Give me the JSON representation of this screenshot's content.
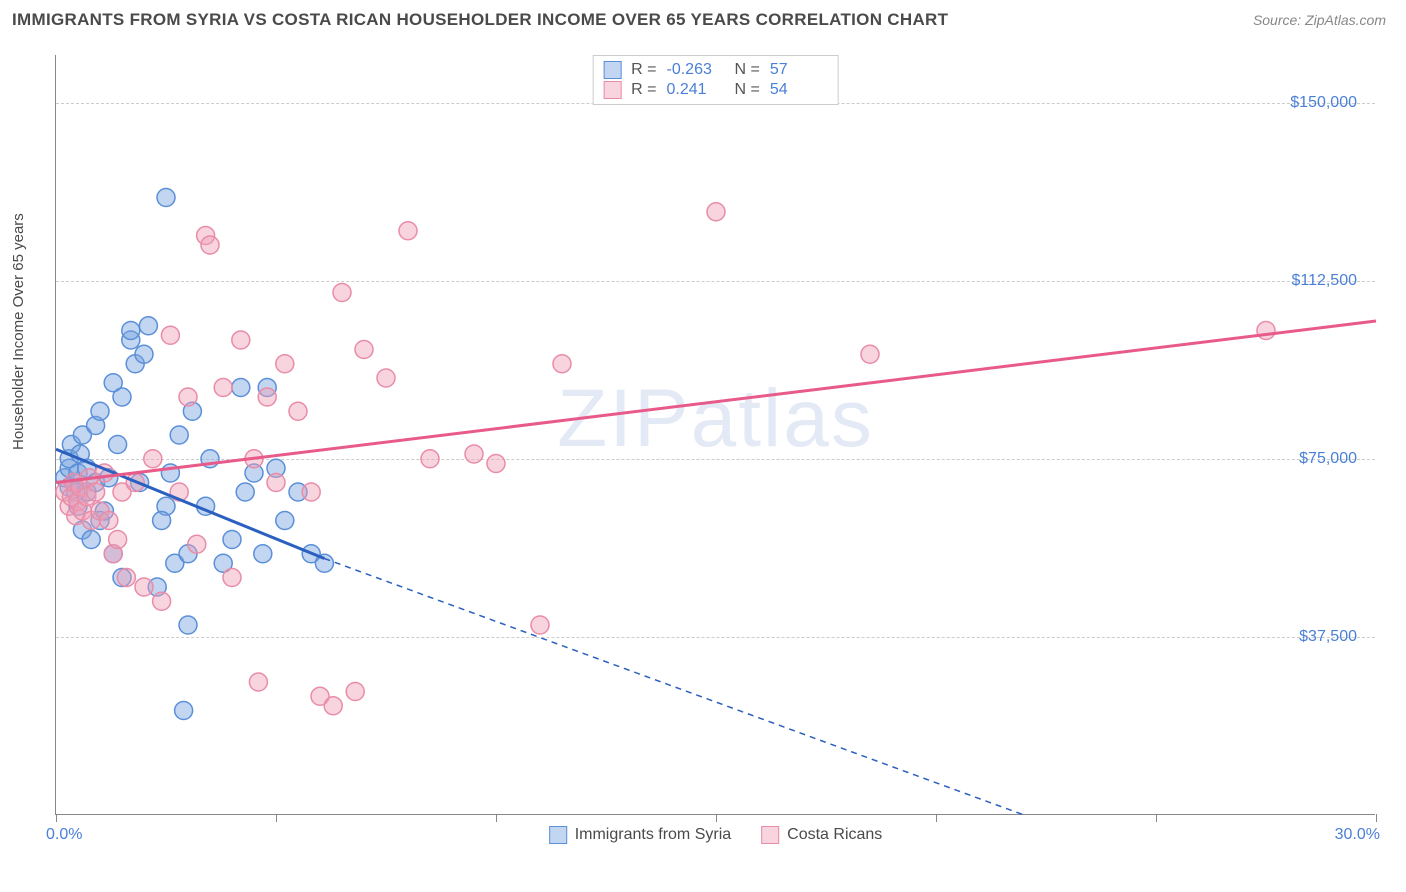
{
  "header": {
    "title": "IMMIGRANTS FROM SYRIA VS COSTA RICAN HOUSEHOLDER INCOME OVER 65 YEARS CORRELATION CHART",
    "source": "Source: ZipAtlas.com"
  },
  "watermark": "ZIPatlas",
  "chart": {
    "type": "scatter-with-regression",
    "ylabel": "Householder Income Over 65 years",
    "x_min": 0.0,
    "x_max": 30.0,
    "y_min": 0,
    "y_max": 160000,
    "x_axis_labels": {
      "start": "0.0%",
      "end": "30.0%"
    },
    "y_ticks": [
      37500,
      75000,
      112500,
      150000
    ],
    "y_tick_labels": [
      "$37,500",
      "$75,000",
      "$112,500",
      "$150,000"
    ],
    "x_tick_positions": [
      0,
      5,
      10,
      15,
      20,
      25,
      30
    ],
    "background_color": "#ffffff",
    "grid_color": "#cccccc",
    "axis_color": "#888888",
    "label_color": "#4a7fd8",
    "marker_radius": 9,
    "marker_opacity": 0.55,
    "line_width": 3,
    "series": [
      {
        "name": "Immigrants from Syria",
        "color_stroke": "#5b8fd8",
        "color_fill": "rgba(120,165,225,0.45)",
        "line_color": "#2b5fc0",
        "R": "-0.263",
        "N": "57",
        "regression": {
          "x1": 0,
          "y1": 77000,
          "x2": 6.1,
          "y2": 54000,
          "extend_x2": 22.0,
          "extend_y2": 0
        },
        "points": [
          [
            0.2,
            71000
          ],
          [
            0.3,
            73000
          ],
          [
            0.3,
            69000
          ],
          [
            0.3,
            75000
          ],
          [
            0.35,
            78000
          ],
          [
            0.4,
            70000
          ],
          [
            0.45,
            68000
          ],
          [
            0.5,
            72000
          ],
          [
            0.5,
            65000
          ],
          [
            0.55,
            76000
          ],
          [
            0.6,
            80000
          ],
          [
            0.6,
            60000
          ],
          [
            0.7,
            68000
          ],
          [
            0.7,
            73000
          ],
          [
            0.8,
            58000
          ],
          [
            0.9,
            70000
          ],
          [
            0.9,
            82000
          ],
          [
            1.0,
            62000
          ],
          [
            1.0,
            85000
          ],
          [
            1.1,
            64000
          ],
          [
            1.2,
            71000
          ],
          [
            1.3,
            91000
          ],
          [
            1.3,
            55000
          ],
          [
            1.4,
            78000
          ],
          [
            1.5,
            50000
          ],
          [
            1.5,
            88000
          ],
          [
            1.7,
            100000
          ],
          [
            1.7,
            102000
          ],
          [
            1.8,
            95000
          ],
          [
            2.0,
            97000
          ],
          [
            2.1,
            103000
          ],
          [
            2.3,
            48000
          ],
          [
            2.5,
            130000
          ],
          [
            2.5,
            65000
          ],
          [
            2.6,
            72000
          ],
          [
            2.7,
            53000
          ],
          [
            2.8,
            80000
          ],
          [
            2.9,
            22000
          ],
          [
            3.0,
            55000
          ],
          [
            3.0,
            40000
          ],
          [
            3.1,
            85000
          ],
          [
            3.4,
            65000
          ],
          [
            3.5,
            75000
          ],
          [
            3.8,
            53000
          ],
          [
            4.0,
            58000
          ],
          [
            4.2,
            90000
          ],
          [
            4.3,
            68000
          ],
          [
            4.5,
            72000
          ],
          [
            4.7,
            55000
          ],
          [
            4.8,
            90000
          ],
          [
            5.0,
            73000
          ],
          [
            5.2,
            62000
          ],
          [
            5.5,
            68000
          ],
          [
            5.8,
            55000
          ],
          [
            6.1,
            53000
          ],
          [
            1.9,
            70000
          ],
          [
            2.4,
            62000
          ]
        ]
      },
      {
        "name": "Costa Ricans",
        "color_stroke": "#e88ca8",
        "color_fill": "rgba(240,160,185,0.45)",
        "line_color": "#e85a8a",
        "R": "0.241",
        "N": "54",
        "regression": {
          "x1": 0,
          "y1": 70000,
          "x2": 30,
          "y2": 104000
        },
        "points": [
          [
            0.2,
            68000
          ],
          [
            0.3,
            65000
          ],
          [
            0.35,
            67000
          ],
          [
            0.4,
            70000
          ],
          [
            0.45,
            63000
          ],
          [
            0.5,
            66000
          ],
          [
            0.55,
            69000
          ],
          [
            0.6,
            64000
          ],
          [
            0.7,
            67000
          ],
          [
            0.75,
            71000
          ],
          [
            0.8,
            62000
          ],
          [
            0.9,
            68000
          ],
          [
            1.0,
            64000
          ],
          [
            1.1,
            72000
          ],
          [
            1.2,
            62000
          ],
          [
            1.3,
            55000
          ],
          [
            1.4,
            58000
          ],
          [
            1.5,
            68000
          ],
          [
            1.6,
            50000
          ],
          [
            1.8,
            70000
          ],
          [
            2.0,
            48000
          ],
          [
            2.2,
            75000
          ],
          [
            2.4,
            45000
          ],
          [
            2.6,
            101000
          ],
          [
            2.8,
            68000
          ],
          [
            3.0,
            88000
          ],
          [
            3.2,
            57000
          ],
          [
            3.4,
            122000
          ],
          [
            3.5,
            120000
          ],
          [
            3.8,
            90000
          ],
          [
            4.0,
            50000
          ],
          [
            4.2,
            100000
          ],
          [
            4.5,
            75000
          ],
          [
            4.8,
            88000
          ],
          [
            5.0,
            70000
          ],
          [
            5.2,
            95000
          ],
          [
            5.5,
            85000
          ],
          [
            5.8,
            68000
          ],
          [
            6.0,
            25000
          ],
          [
            6.3,
            23000
          ],
          [
            6.5,
            110000
          ],
          [
            6.8,
            26000
          ],
          [
            7.0,
            98000
          ],
          [
            7.5,
            92000
          ],
          [
            8.0,
            123000
          ],
          [
            8.5,
            75000
          ],
          [
            9.5,
            76000
          ],
          [
            10.0,
            74000
          ],
          [
            11.5,
            95000
          ],
          [
            11.0,
            40000
          ],
          [
            15.0,
            127000
          ],
          [
            18.5,
            97000
          ],
          [
            27.5,
            102000
          ],
          [
            4.6,
            28000
          ]
        ]
      }
    ],
    "legend": {
      "bottom": [
        {
          "label": "Immigrants from Syria",
          "swatch_fill": "rgba(120,165,225,0.45)",
          "swatch_stroke": "#5b8fd8"
        },
        {
          "label": "Costa Ricans",
          "swatch_fill": "rgba(240,160,185,0.45)",
          "swatch_stroke": "#e88ca8"
        }
      ]
    }
  }
}
